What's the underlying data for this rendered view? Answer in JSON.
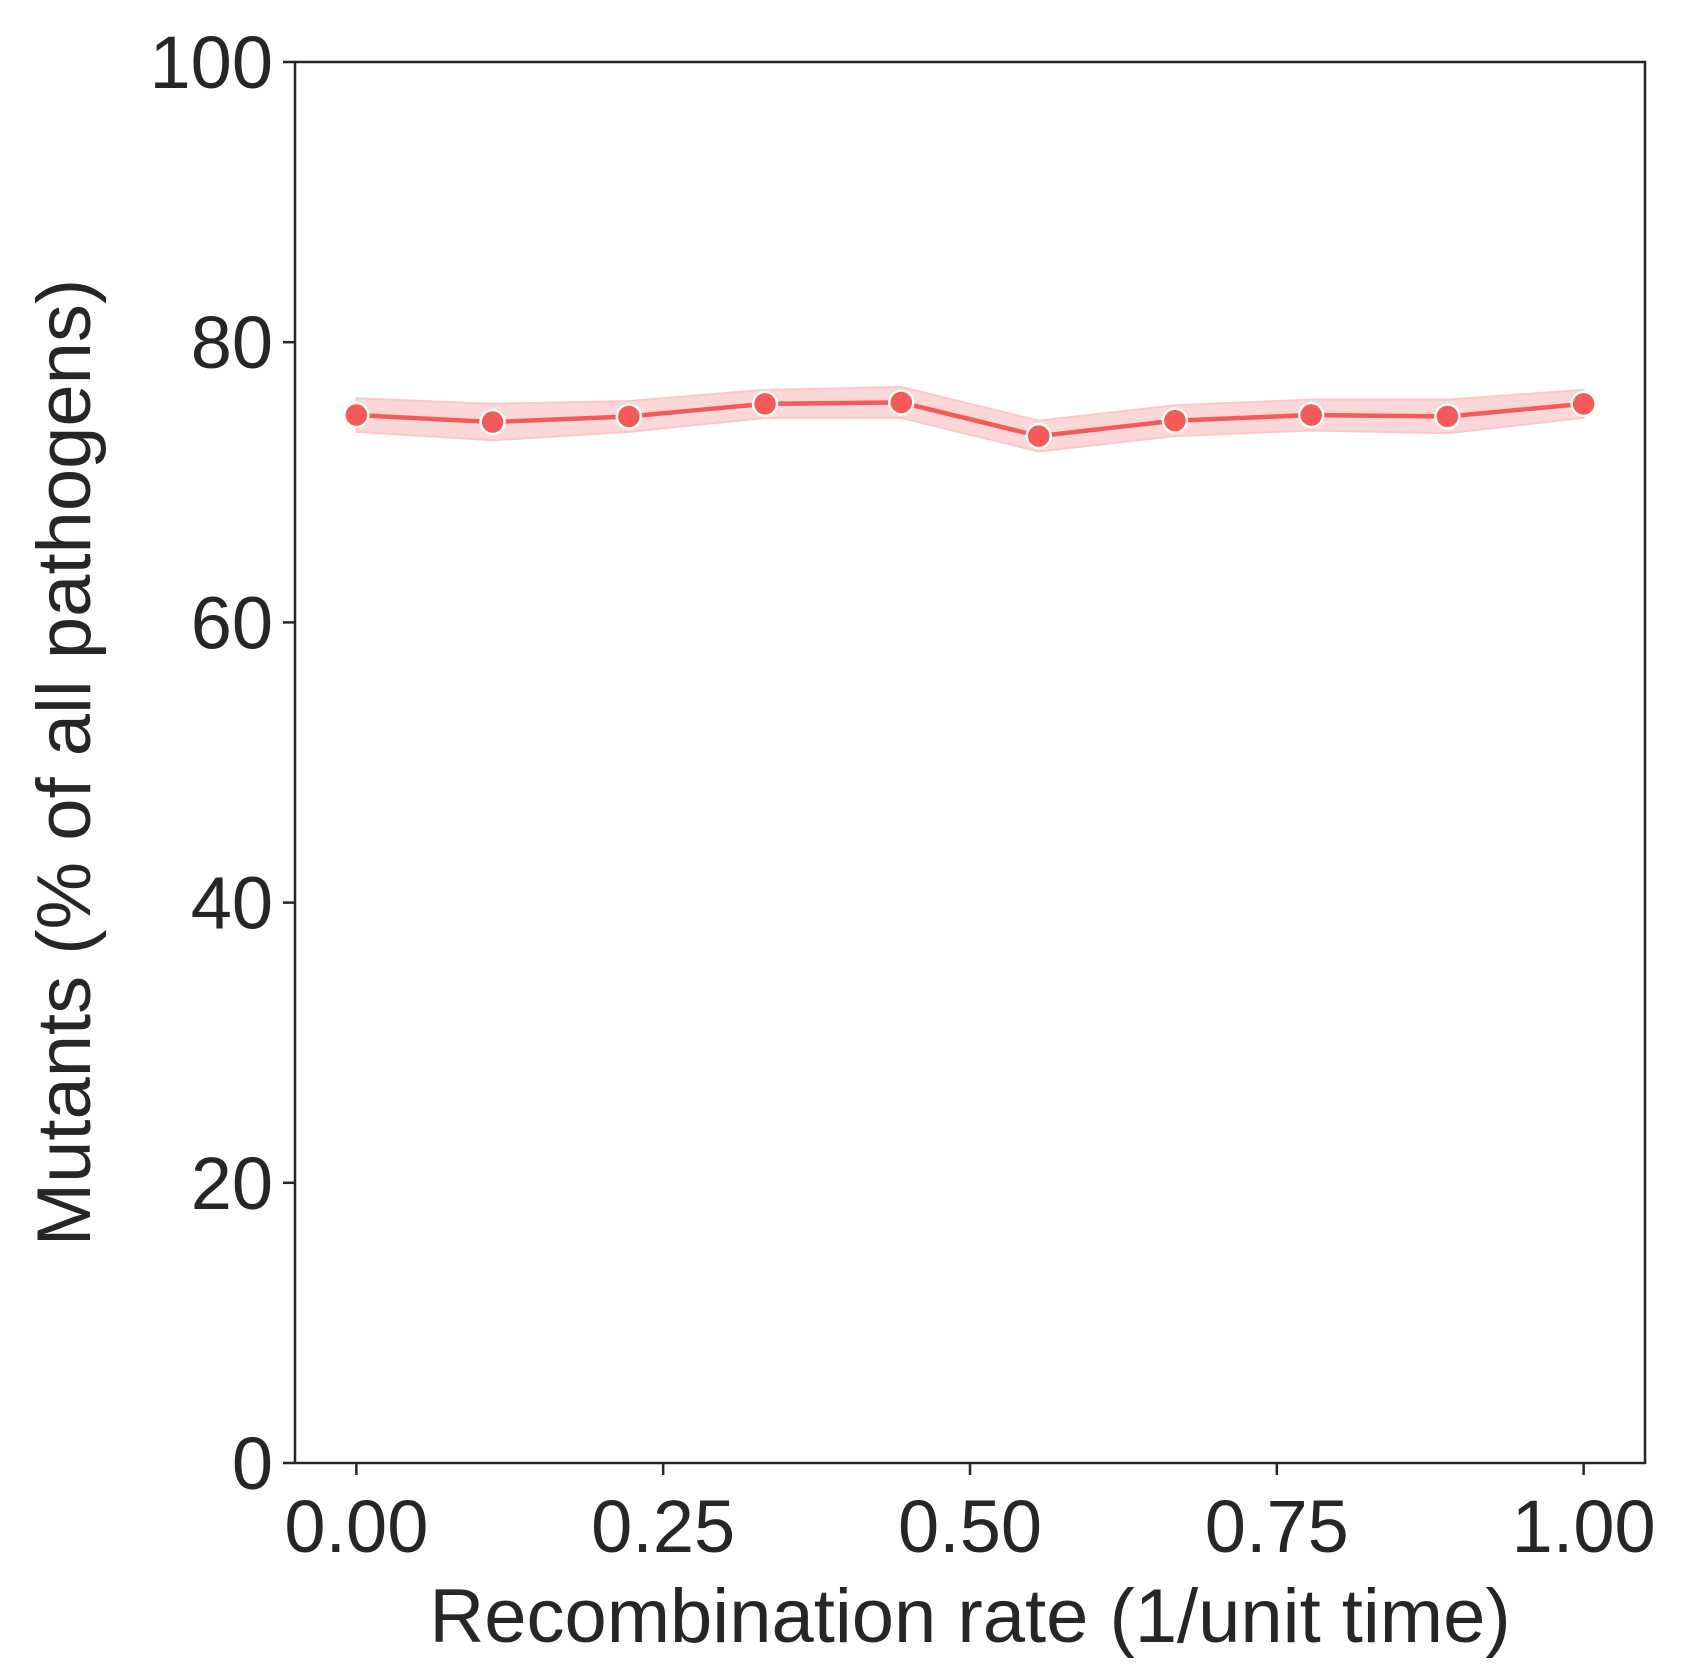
{
  "chart_data": {
    "type": "line",
    "xlabel": "Recombination rate (1/unit time)",
    "ylabel": "Mutants (% of all pathogens)",
    "xlim": [
      -0.05,
      1.05
    ],
    "ylim": [
      0,
      100
    ],
    "xticks": [
      0.0,
      0.25,
      0.5,
      0.75,
      1.0
    ],
    "xtick_labels": [
      "0.00",
      "0.25",
      "0.50",
      "0.75",
      "1.00"
    ],
    "yticks": [
      0,
      20,
      40,
      60,
      80,
      100
    ],
    "ytick_labels": [
      "0",
      "20",
      "40",
      "60",
      "80",
      "100"
    ],
    "grid": false,
    "legend": "none",
    "series": [
      {
        "color": "#f45a5a",
        "band_color": "#fbc9c9",
        "x": [
          0.0,
          0.111,
          0.222,
          0.333,
          0.444,
          0.556,
          0.667,
          0.778,
          0.889,
          1.0
        ],
        "y": [
          74.8,
          74.3,
          74.7,
          75.6,
          75.7,
          73.3,
          74.4,
          74.8,
          74.7,
          75.6
        ],
        "y_lower": [
          73.6,
          73.0,
          73.6,
          74.6,
          74.6,
          72.2,
          73.3,
          73.7,
          73.5,
          74.6
        ],
        "y_upper": [
          76.0,
          75.6,
          75.8,
          76.6,
          76.8,
          74.4,
          75.5,
          75.9,
          75.9,
          76.6
        ]
      }
    ]
  }
}
